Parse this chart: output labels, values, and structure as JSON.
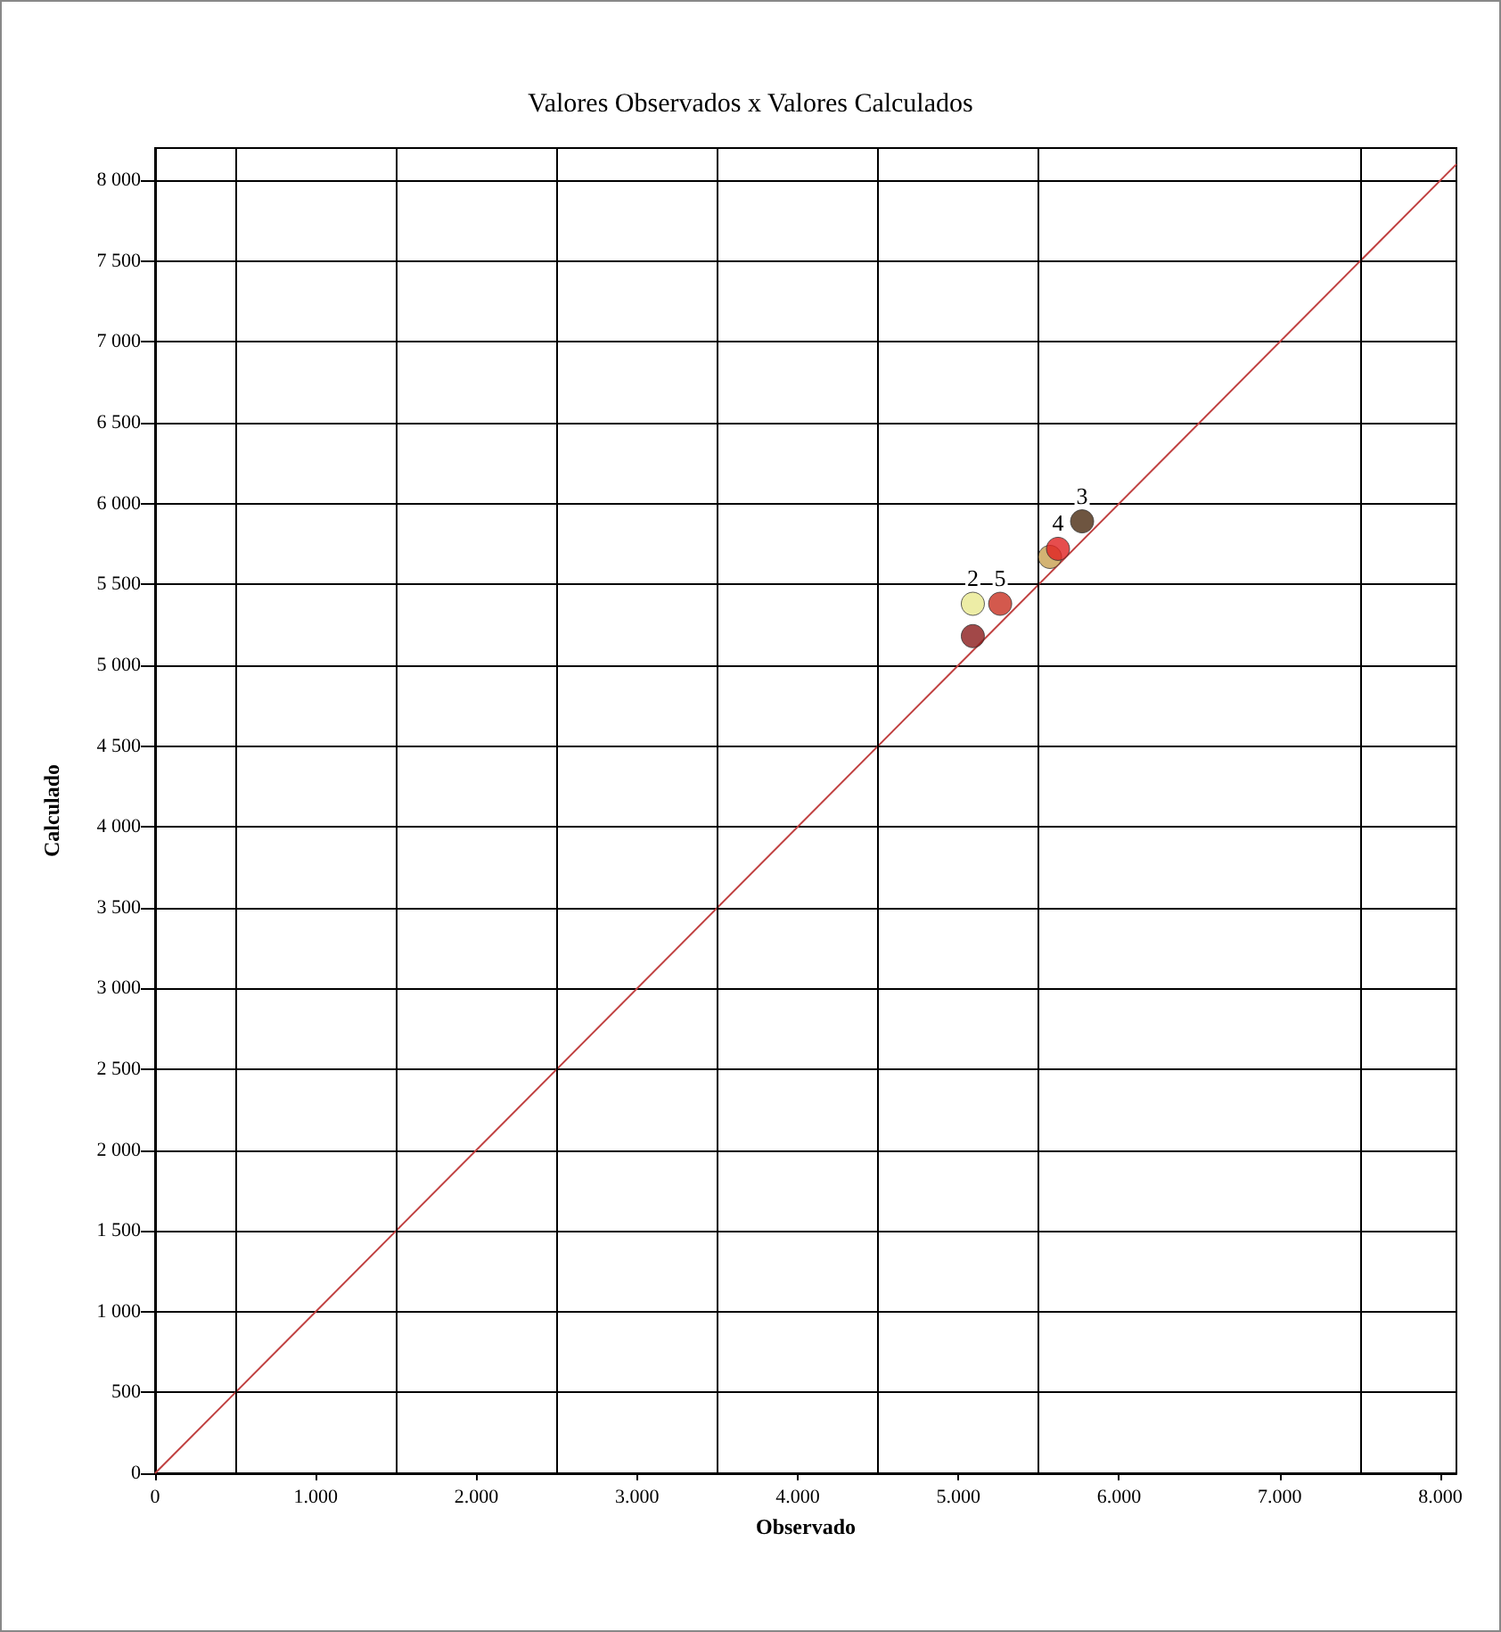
{
  "chart_data": {
    "type": "scatter",
    "title": "Valores Observados x Valores Calculados",
    "xlabel": "Observado",
    "ylabel": "Calculado",
    "x": [
      5090,
      5260,
      5570,
      5620,
      5770,
      5090
    ],
    "series": [
      {
        "colors": [
          "#8b1a1a",
          "#c83020",
          "#c8a050",
          "#e02020",
          "#4a2a10",
          "#e8e890"
        ],
        "values": [
          5180,
          5380,
          5670,
          5720,
          5890,
          5380
        ],
        "marker": "circle"
      },
      {
        "type": "line",
        "color": "#c04040",
        "x": [
          0,
          8100
        ],
        "values": [
          0,
          8100
        ],
        "marker": "none"
      }
    ],
    "annotations": [
      {
        "text": "2",
        "x": 5090,
        "y": 5380
      },
      {
        "text": "5",
        "x": 5260,
        "y": 5380
      },
      {
        "text": "4",
        "x": 5620,
        "y": 5720
      },
      {
        "text": "3",
        "x": 5770,
        "y": 5890
      }
    ],
    "ref_lines": [
      {
        "axis": "x",
        "value": 500
      },
      {
        "axis": "x",
        "value": 1500
      },
      {
        "axis": "x",
        "value": 2500
      },
      {
        "axis": "x",
        "value": 3500
      },
      {
        "axis": "x",
        "value": 4500
      },
      {
        "axis": "x",
        "value": 5500
      },
      {
        "axis": "x",
        "value": 7500
      }
    ],
    "xlim": [
      0,
      8100
    ],
    "ylim": [
      0,
      8200
    ],
    "xticks": [
      0,
      {
        "value": 1000,
        "label": "1.000"
      },
      {
        "value": 2000,
        "label": "2.000"
      },
      {
        "value": 3000,
        "label": "3.000"
      },
      {
        "value": 4000,
        "label": "4.000"
      },
      {
        "value": 5000,
        "label": "5.000"
      },
      {
        "value": 6000,
        "label": "6.000"
      },
      {
        "value": 7000,
        "label": "7.000"
      },
      {
        "value": 8000,
        "label": "8.000"
      }
    ],
    "yticks": [
      0,
      500,
      {
        "value": 1000,
        "label": "1 000"
      },
      {
        "value": 1500,
        "label": "1 500"
      },
      {
        "value": 2000,
        "label": "2 000"
      },
      {
        "value": 2500,
        "label": "2 500"
      },
      {
        "value": 3000,
        "label": "3 000"
      },
      {
        "value": 3500,
        "label": "3 500"
      },
      {
        "value": 4000,
        "label": "4 000"
      },
      {
        "value": 4500,
        "label": "4 500"
      },
      {
        "value": 5000,
        "label": "5 000"
      },
      {
        "value": 5500,
        "label": "5 500"
      },
      {
        "value": 6000,
        "label": "6 000"
      },
      {
        "value": 6500,
        "label": "6 500"
      },
      {
        "value": 7000,
        "label": "7 000"
      },
      {
        "value": 7500,
        "label": "7 500"
      },
      {
        "value": 8000,
        "label": "8 000"
      }
    ],
    "grid": "y"
  }
}
